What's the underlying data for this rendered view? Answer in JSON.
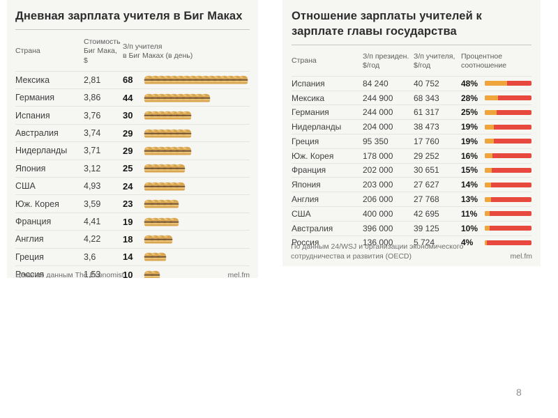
{
  "page_number": "8",
  "colors": {
    "orange": "#EFA53C",
    "red": "#E8493F",
    "card_bg": "#F6F6F3"
  },
  "icons": {
    "burger": "bigmac-icon"
  },
  "left_card": {
    "title": "Дневная зарплата учителя в Биг Маках",
    "columns": [
      "Страна",
      "Стоимость\nБиг Мака, $",
      "З/п учителя\nв Биг Маках (в день)"
    ],
    "rows": [
      {
        "country": "Мексика",
        "price": "2,81",
        "count": 68
      },
      {
        "country": "Германия",
        "price": "3,86",
        "count": 44
      },
      {
        "country": "Испания",
        "price": "3,76",
        "count": 30
      },
      {
        "country": "Австралия",
        "price": "3,74",
        "count": 29
      },
      {
        "country": "Нидерланды",
        "price": "3,71",
        "count": 29
      },
      {
        "country": "Япония",
        "price": "3,12",
        "count": 25
      },
      {
        "country": "США",
        "price": "4,93",
        "count": 24
      },
      {
        "country": "Юж. Корея",
        "price": "3,59",
        "count": 23
      },
      {
        "country": "Франция",
        "price": "4,41",
        "count": 19
      },
      {
        "country": "Англия",
        "price": "4,22",
        "count": 18
      },
      {
        "country": "Греция",
        "price": "3,6",
        "count": 14
      },
      {
        "country": "Россия",
        "price": "1,53",
        "count": 10
      }
    ],
    "source": "Цены по данным The Economist",
    "brand": "mel.fm"
  },
  "right_card": {
    "title": "Отношение зарплаты учителей к зарплате главы государства",
    "columns": [
      "Страна",
      "З/п президен.\n$/год",
      "З/п учителя,\n$/год",
      "Процентное\nсоотношение"
    ],
    "rows": [
      {
        "country": "Испания",
        "president": "84 240",
        "teacher": "40 752",
        "percent": 48
      },
      {
        "country": "Мексика",
        "president": "244 900",
        "teacher": "68 343",
        "percent": 28
      },
      {
        "country": "Германия",
        "president": "244 000",
        "teacher": "61 317",
        "percent": 25
      },
      {
        "country": "Нидерланды",
        "president": "204 000",
        "teacher": "38 473",
        "percent": 19
      },
      {
        "country": "Греция",
        "president": "95 350",
        "teacher": "17 760",
        "percent": 19
      },
      {
        "country": "Юж. Корея",
        "president": "178 000",
        "teacher": "29 252",
        "percent": 16
      },
      {
        "country": "Франция",
        "president": "202 000",
        "teacher": "30 651",
        "percent": 15
      },
      {
        "country": "Япония",
        "president": "203 000",
        "teacher": "27 627",
        "percent": 14
      },
      {
        "country": "Англия",
        "president": "206 000",
        "teacher": "27 768",
        "percent": 13
      },
      {
        "country": "США",
        "president": "400 000",
        "teacher": "42 695",
        "percent": 11
      },
      {
        "country": "Австралия",
        "president": "396 000",
        "teacher": "39 125",
        "percent": 10
      },
      {
        "country": "Россия",
        "president": "136 000",
        "teacher": "5 724",
        "percent": 4
      }
    ],
    "source": "По данным 24/WSJ и организации экономического\nсотрудничества и развития (OECD)",
    "brand": "mel.fm"
  },
  "chart_data": [
    {
      "type": "bar",
      "title": "Дневная зарплата учителя в Биг Маках",
      "categories": [
        "Мексика",
        "Германия",
        "Испания",
        "Австралия",
        "Нидерланды",
        "Япония",
        "США",
        "Юж. Корея",
        "Франция",
        "Англия",
        "Греция",
        "Россия"
      ],
      "series": [
        {
          "name": "Стоимость Биг Мака, $",
          "values": [
            2.81,
            3.86,
            3.76,
            3.74,
            3.71,
            3.12,
            4.93,
            3.59,
            4.41,
            4.22,
            3.6,
            1.53
          ]
        },
        {
          "name": "З/п учителя в Биг Маках (в день)",
          "values": [
            68,
            44,
            30,
            29,
            29,
            25,
            24,
            23,
            19,
            18,
            14,
            10
          ]
        }
      ],
      "xlabel": "",
      "ylabel": "",
      "legend_position": "none",
      "grid": false,
      "annotation": "Цены по данным The Economist"
    },
    {
      "type": "bar",
      "title": "Отношение зарплаты учителей к зарплате главы государства",
      "categories": [
        "Испания",
        "Мексика",
        "Германия",
        "Нидерланды",
        "Греция",
        "Юж. Корея",
        "Франция",
        "Япония",
        "Англия",
        "США",
        "Австралия",
        "Россия"
      ],
      "series": [
        {
          "name": "З/п президен. $/год",
          "values": [
            84240,
            244900,
            244000,
            204000,
            95350,
            178000,
            202000,
            203000,
            206000,
            400000,
            396000,
            136000
          ]
        },
        {
          "name": "З/п учителя, $/год",
          "values": [
            40752,
            68343,
            61317,
            38473,
            17760,
            29252,
            30651,
            27627,
            27768,
            42695,
            39125,
            5724
          ]
        },
        {
          "name": "Процентное соотношение, %",
          "values": [
            48,
            28,
            25,
            19,
            19,
            16,
            15,
            14,
            13,
            11,
            10,
            4
          ]
        }
      ],
      "xlabel": "",
      "ylabel": "",
      "legend_position": "none",
      "grid": false,
      "xlim": [
        0,
        100
      ],
      "annotation": "По данным 24/WSJ и организации экономического сотрудничества и развития (OECD)"
    }
  ]
}
